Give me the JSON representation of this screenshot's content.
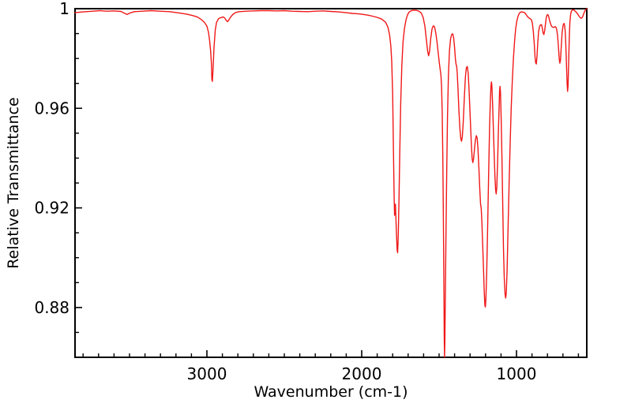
{
  "chart_data": {
    "type": "line",
    "title": "",
    "xlabel": "Wavenumber (cm-1)",
    "ylabel": "Relative Transmittance",
    "grid": false,
    "legend": false,
    "x_axis": {
      "min": 546,
      "max": 3852,
      "reversed": true,
      "major_ticks": [
        3000,
        2000,
        1000
      ],
      "tick_labels": [
        "3000",
        "2000",
        "1000"
      ],
      "minor_tick_step": 100
    },
    "y_axis": {
      "min": 0.86,
      "max": 1.0,
      "major_ticks": [
        1,
        0.96,
        0.92,
        0.88
      ],
      "tick_labels": [
        "1",
        "0.96",
        "0.92",
        "0.88"
      ],
      "minor_tick_step": 0.01
    },
    "series": [
      {
        "color": "#f01818",
        "points": [
          [
            3852,
            0.9984
          ],
          [
            3800,
            0.9987
          ],
          [
            3740,
            0.999
          ],
          [
            3690,
            0.9992
          ],
          [
            3650,
            0.999
          ],
          [
            3600,
            0.9991
          ],
          [
            3555,
            0.9989
          ],
          [
            3530,
            0.9981
          ],
          [
            3515,
            0.9977
          ],
          [
            3500,
            0.9982
          ],
          [
            3470,
            0.9988
          ],
          [
            3420,
            0.999
          ],
          [
            3360,
            0.9992
          ],
          [
            3300,
            0.999
          ],
          [
            3240,
            0.9988
          ],
          [
            3180,
            0.9983
          ],
          [
            3130,
            0.9978
          ],
          [
            3090,
            0.9972
          ],
          [
            3060,
            0.9966
          ],
          [
            3035,
            0.9956
          ],
          [
            3015,
            0.9944
          ],
          [
            3000,
            0.993
          ],
          [
            2990,
            0.9905
          ],
          [
            2982,
            0.987
          ],
          [
            2976,
            0.983
          ],
          [
            2971,
            0.978
          ],
          [
            2968,
            0.9715
          ],
          [
            2965,
            0.9708
          ],
          [
            2961,
            0.9745
          ],
          [
            2954,
            0.9845
          ],
          [
            2946,
            0.9915
          ],
          [
            2938,
            0.9945
          ],
          [
            2925,
            0.996
          ],
          [
            2910,
            0.9964
          ],
          [
            2895,
            0.9967
          ],
          [
            2884,
            0.9962
          ],
          [
            2874,
            0.9952
          ],
          [
            2866,
            0.9948
          ],
          [
            2858,
            0.9955
          ],
          [
            2845,
            0.9968
          ],
          [
            2830,
            0.9978
          ],
          [
            2812,
            0.9985
          ],
          [
            2790,
            0.9988
          ],
          [
            2750,
            0.999
          ],
          [
            2700,
            0.9991
          ],
          [
            2650,
            0.9992
          ],
          [
            2600,
            0.9992
          ],
          [
            2550,
            0.9991
          ],
          [
            2500,
            0.9992
          ],
          [
            2450,
            0.999
          ],
          [
            2400,
            0.9989
          ],
          [
            2350,
            0.9988
          ],
          [
            2300,
            0.999
          ],
          [
            2250,
            0.9991
          ],
          [
            2200,
            0.9989
          ],
          [
            2150,
            0.9987
          ],
          [
            2100,
            0.9984
          ],
          [
            2060,
            0.9981
          ],
          [
            2020,
            0.9979
          ],
          [
            1990,
            0.9977
          ],
          [
            1960,
            0.9974
          ],
          [
            1930,
            0.997
          ],
          [
            1900,
            0.9965
          ],
          [
            1870,
            0.9958
          ],
          [
            1845,
            0.9945
          ],
          [
            1830,
            0.9925
          ],
          [
            1820,
            0.9895
          ],
          [
            1812,
            0.985
          ],
          [
            1806,
            0.979
          ],
          [
            1800,
            0.966
          ],
          [
            1795,
            0.943
          ],
          [
            1791,
            0.926
          ],
          [
            1788,
            0.917
          ],
          [
            1785,
            0.9195
          ],
          [
            1782,
            0.9215
          ],
          [
            1779,
            0.916
          ],
          [
            1775,
            0.909
          ],
          [
            1771,
            0.903
          ],
          [
            1768,
            0.902
          ],
          [
            1764,
            0.909
          ],
          [
            1759,
            0.923
          ],
          [
            1754,
            0.942
          ],
          [
            1748,
            0.962
          ],
          [
            1741,
            0.977
          ],
          [
            1733,
            0.9865
          ],
          [
            1724,
            0.992
          ],
          [
            1714,
            0.9955
          ],
          [
            1704,
            0.9975
          ],
          [
            1694,
            0.9986
          ],
          [
            1680,
            0.9992
          ],
          [
            1662,
            0.9994
          ],
          [
            1645,
            0.9993
          ],
          [
            1630,
            0.999
          ],
          [
            1616,
            0.9983
          ],
          [
            1603,
            0.9965
          ],
          [
            1592,
            0.993
          ],
          [
            1582,
            0.9875
          ],
          [
            1574,
            0.983
          ],
          [
            1568,
            0.9811
          ],
          [
            1562,
            0.9828
          ],
          [
            1554,
            0.988
          ],
          [
            1546,
            0.9918
          ],
          [
            1538,
            0.9931
          ],
          [
            1530,
            0.9928
          ],
          [
            1522,
            0.9905
          ],
          [
            1514,
            0.9868
          ],
          [
            1506,
            0.9825
          ],
          [
            1499,
            0.9785
          ],
          [
            1493,
            0.9755
          ],
          [
            1488,
            0.973
          ],
          [
            1484,
            0.969
          ],
          [
            1480,
            0.959
          ],
          [
            1476,
            0.941
          ],
          [
            1472,
            0.913
          ],
          [
            1469,
            0.888
          ],
          [
            1467,
            0.868
          ],
          [
            1465,
            0.86
          ],
          [
            1463,
            0.866
          ],
          [
            1460,
            0.881
          ],
          [
            1456,
            0.906
          ],
          [
            1451,
            0.933
          ],
          [
            1446,
            0.956
          ],
          [
            1440,
            0.973
          ],
          [
            1433,
            0.983
          ],
          [
            1426,
            0.9878
          ],
          [
            1419,
            0.9896
          ],
          [
            1412,
            0.9899
          ],
          [
            1406,
            0.9884
          ],
          [
            1400,
            0.9845
          ],
          [
            1395,
            0.98
          ],
          [
            1391,
            0.9778
          ],
          [
            1387,
            0.977
          ],
          [
            1383,
            0.9745
          ],
          [
            1378,
            0.968
          ],
          [
            1372,
            0.959
          ],
          [
            1366,
            0.952
          ],
          [
            1360,
            0.9478
          ],
          [
            1355,
            0.9468
          ],
          [
            1350,
            0.9485
          ],
          [
            1344,
            0.9545
          ],
          [
            1337,
            0.9645
          ],
          [
            1330,
            0.9725
          ],
          [
            1324,
            0.9762
          ],
          [
            1318,
            0.9768
          ],
          [
            1312,
            0.974
          ],
          [
            1306,
            0.967
          ],
          [
            1299,
            0.9565
          ],
          [
            1292,
            0.946
          ],
          [
            1287,
            0.94
          ],
          [
            1282,
            0.9382
          ],
          [
            1277,
            0.9398
          ],
          [
            1271,
            0.944
          ],
          [
            1265,
            0.9475
          ],
          [
            1259,
            0.949
          ],
          [
            1254,
            0.948
          ],
          [
            1249,
            0.944
          ],
          [
            1243,
            0.936
          ],
          [
            1237,
            0.927
          ],
          [
            1232,
            0.9215
          ],
          [
            1228,
            0.92
          ],
          [
            1224,
            0.915
          ],
          [
            1219,
            0.906
          ],
          [
            1213,
            0.895
          ],
          [
            1208,
            0.886
          ],
          [
            1204,
            0.8808
          ],
          [
            1201,
            0.8802
          ],
          [
            1198,
            0.883
          ],
          [
            1193,
            0.893
          ],
          [
            1187,
            0.911
          ],
          [
            1180,
            0.933
          ],
          [
            1174,
            0.952
          ],
          [
            1169,
            0.963
          ],
          [
            1165,
            0.969
          ],
          [
            1162,
            0.9706
          ],
          [
            1159,
            0.9692
          ],
          [
            1155,
            0.963
          ],
          [
            1150,
            0.953
          ],
          [
            1144,
            0.941
          ],
          [
            1139,
            0.932
          ],
          [
            1135,
            0.9272
          ],
          [
            1131,
            0.9256
          ],
          [
            1127,
            0.9285
          ],
          [
            1122,
            0.9385
          ],
          [
            1117,
            0.951
          ],
          [
            1112,
            0.9615
          ],
          [
            1109,
            0.967
          ],
          [
            1106,
            0.9688
          ],
          [
            1103,
            0.966
          ],
          [
            1099,
            0.956
          ],
          [
            1094,
            0.94
          ],
          [
            1089,
            0.921
          ],
          [
            1084,
            0.904
          ],
          [
            1079,
            0.892
          ],
          [
            1074,
            0.8855
          ],
          [
            1070,
            0.8838
          ],
          [
            1066,
            0.886
          ],
          [
            1061,
            0.895
          ],
          [
            1055,
            0.91
          ],
          [
            1048,
            0.929
          ],
          [
            1041,
            0.946
          ],
          [
            1034,
            0.96
          ],
          [
            1027,
            0.971
          ],
          [
            1020,
            0.98
          ],
          [
            1012,
            0.9875
          ],
          [
            1005,
            0.992
          ],
          [
            998,
            0.995
          ],
          [
            990,
            0.997
          ],
          [
            982,
            0.9981
          ],
          [
            974,
            0.9986
          ],
          [
            966,
            0.9987
          ],
          [
            958,
            0.9986
          ],
          [
            950,
            0.9985
          ],
          [
            942,
            0.998
          ],
          [
            934,
            0.9973
          ],
          [
            926,
            0.9966
          ],
          [
            918,
            0.9962
          ],
          [
            910,
            0.9959
          ],
          [
            903,
            0.9955
          ],
          [
            897,
            0.994
          ],
          [
            891,
            0.9905
          ],
          [
            885,
            0.9855
          ],
          [
            880,
            0.9805
          ],
          [
            876,
            0.9783
          ],
          [
            872,
            0.9778
          ],
          [
            868,
            0.9806
          ],
          [
            863,
            0.986
          ],
          [
            857,
            0.9908
          ],
          [
            851,
            0.9928
          ],
          [
            845,
            0.9935
          ],
          [
            839,
            0.9936
          ],
          [
            833,
            0.9922
          ],
          [
            828,
            0.9903
          ],
          [
            823,
            0.9896
          ],
          [
            818,
            0.9912
          ],
          [
            812,
            0.9944
          ],
          [
            807,
            0.9965
          ],
          [
            802,
            0.9975
          ],
          [
            797,
            0.9976
          ],
          [
            792,
            0.9968
          ],
          [
            786,
            0.9952
          ],
          [
            780,
            0.994
          ],
          [
            774,
            0.993
          ],
          [
            767,
            0.9926
          ],
          [
            760,
            0.9925
          ],
          [
            753,
            0.9927
          ],
          [
            747,
            0.9927
          ],
          [
            741,
            0.9918
          ],
          [
            735,
            0.9893
          ],
          [
            729,
            0.9848
          ],
          [
            724,
            0.98
          ],
          [
            720,
            0.9781
          ],
          [
            716,
            0.9793
          ],
          [
            711,
            0.9848
          ],
          [
            705,
            0.9905
          ],
          [
            699,
            0.9933
          ],
          [
            693,
            0.9941
          ],
          [
            689,
            0.9932
          ],
          [
            685,
            0.9905
          ],
          [
            681,
            0.9852
          ],
          [
            677,
            0.9775
          ],
          [
            673,
            0.97
          ],
          [
            670,
            0.9668
          ],
          [
            667,
            0.969
          ],
          [
            663,
            0.979
          ],
          [
            659,
            0.989
          ],
          [
            655,
            0.9945
          ],
          [
            650,
            0.9978
          ],
          [
            645,
            0.9991
          ],
          [
            639,
            0.9995
          ],
          [
            633,
            0.9995
          ],
          [
            626,
            0.9993
          ],
          [
            619,
            0.9989
          ],
          [
            611,
            0.9984
          ],
          [
            603,
            0.9977
          ],
          [
            596,
            0.997
          ],
          [
            590,
            0.9965
          ],
          [
            585,
            0.9962
          ],
          [
            580,
            0.9962
          ],
          [
            574,
            0.9966
          ],
          [
            568,
            0.9976
          ],
          [
            562,
            0.9986
          ],
          [
            556,
            0.9993
          ],
          [
            551,
            0.9997
          ],
          [
            546,
            1.0
          ]
        ]
      }
    ]
  },
  "style": {
    "background": "#ffffff",
    "axis_color": "#000000",
    "text_color": "#000000",
    "line_color": "#f01818"
  }
}
